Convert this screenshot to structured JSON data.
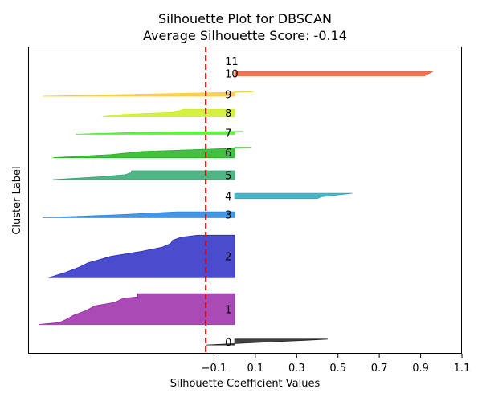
{
  "chart_data": {
    "type": "area",
    "title": "Silhouette Plot for DBSCAN",
    "subtitle": "Average Silhouette Score: -0.14",
    "xlabel": "Silhouette Coefficient Values",
    "ylabel": "Cluster Label",
    "x_ticks": [
      -0.1,
      0.1,
      0.3,
      0.5,
      0.7,
      0.9,
      1.1
    ],
    "x_tick_labels": [
      "−0.1",
      "0.1",
      "0.3",
      "0.5",
      "0.7",
      "0.9",
      "1.1"
    ],
    "xlim": [
      -1.0,
      1.1
    ],
    "ylim": [
      0,
      105
    ],
    "average_line": {
      "value": -0.14,
      "color": "#dd0000",
      "style": "dashed"
    },
    "grid": false,
    "clusters": [
      {
        "label": "0",
        "color": "#222222",
        "y0": 3,
        "y1": 5,
        "profile": [
          [
            0,
            -0.14
          ],
          [
            0.4,
            0.1
          ],
          [
            0.8,
            0.35
          ],
          [
            1,
            0.45
          ]
        ]
      },
      {
        "label": "1",
        "color": "#9a2aa8",
        "y0": 10,
        "y1": 20.5,
        "profile": [
          [
            0,
            -0.95
          ],
          [
            0.06,
            -0.85
          ],
          [
            0.15,
            -0.82
          ],
          [
            0.3,
            -0.78
          ],
          [
            0.45,
            -0.72
          ],
          [
            0.6,
            -0.68
          ],
          [
            0.72,
            -0.58
          ],
          [
            0.85,
            -0.54
          ],
          [
            0.9,
            -0.47
          ],
          [
            1,
            -0.47
          ]
        ]
      },
      {
        "label": "2",
        "color": "#2b2bc4",
        "y0": 26,
        "y1": 40.5,
        "profile": [
          [
            0,
            -0.9
          ],
          [
            0.12,
            -0.82
          ],
          [
            0.25,
            -0.75
          ],
          [
            0.35,
            -0.71
          ],
          [
            0.5,
            -0.6
          ],
          [
            0.62,
            -0.45
          ],
          [
            0.72,
            -0.35
          ],
          [
            0.8,
            -0.31
          ],
          [
            0.88,
            -0.3
          ],
          [
            0.95,
            -0.26
          ],
          [
            1,
            -0.18
          ]
        ]
      },
      {
        "label": "3",
        "color": "#2585e0",
        "y0": 46.5,
        "y1": 48.5,
        "profile": [
          [
            0,
            -0.93
          ],
          [
            0.5,
            -0.55
          ],
          [
            1,
            -0.28
          ]
        ]
      },
      {
        "label": "4",
        "color": "#2aaabd",
        "y0": 53,
        "y1": 54.8,
        "profile": [
          [
            0,
            0.4
          ],
          [
            0.35,
            0.42
          ],
          [
            1,
            0.57
          ]
        ]
      },
      {
        "label": "5",
        "color": "#30a870",
        "y0": 59.5,
        "y1": 62.5,
        "profile": [
          [
            0,
            -0.88
          ],
          [
            0.3,
            -0.66
          ],
          [
            0.55,
            -0.53
          ],
          [
            0.8,
            -0.5
          ],
          [
            1,
            -0.5
          ]
        ]
      },
      {
        "label": "6",
        "color": "#22b422",
        "y0": 67,
        "y1": 70.5,
        "profile": [
          [
            0,
            -0.88
          ],
          [
            0.3,
            -0.6
          ],
          [
            0.6,
            -0.45
          ],
          [
            0.85,
            -0.1
          ],
          [
            1,
            0.08
          ]
        ]
      },
      {
        "label": "7",
        "color": "#44ee22",
        "y0": 75,
        "y1": 76,
        "profile": [
          [
            0,
            -0.77
          ],
          [
            0.6,
            -0.5
          ],
          [
            1,
            0.04
          ]
        ]
      },
      {
        "label": "8",
        "color": "#ccee22",
        "y0": 81,
        "y1": 83.5,
        "profile": [
          [
            0,
            -0.64
          ],
          [
            0.3,
            -0.54
          ],
          [
            0.6,
            -0.3
          ],
          [
            1,
            -0.25
          ]
        ]
      },
      {
        "label": "9",
        "color": "#ffc92a",
        "y0": 88,
        "y1": 89.5,
        "profile": [
          [
            0,
            -0.93
          ],
          [
            0.5,
            -0.4
          ],
          [
            1,
            0.09
          ]
        ]
      },
      {
        "label": "10",
        "color": "#f05a36",
        "y0": 95,
        "y1": 96.5,
        "profile": [
          [
            0,
            0.92
          ],
          [
            0.5,
            0.94
          ],
          [
            1,
            0.96
          ]
        ]
      },
      {
        "label": "11",
        "color": "#e83a20",
        "y0": 100,
        "y1": 100,
        "profile": [
          [
            0,
            0
          ],
          [
            1,
            0
          ]
        ]
      }
    ]
  }
}
